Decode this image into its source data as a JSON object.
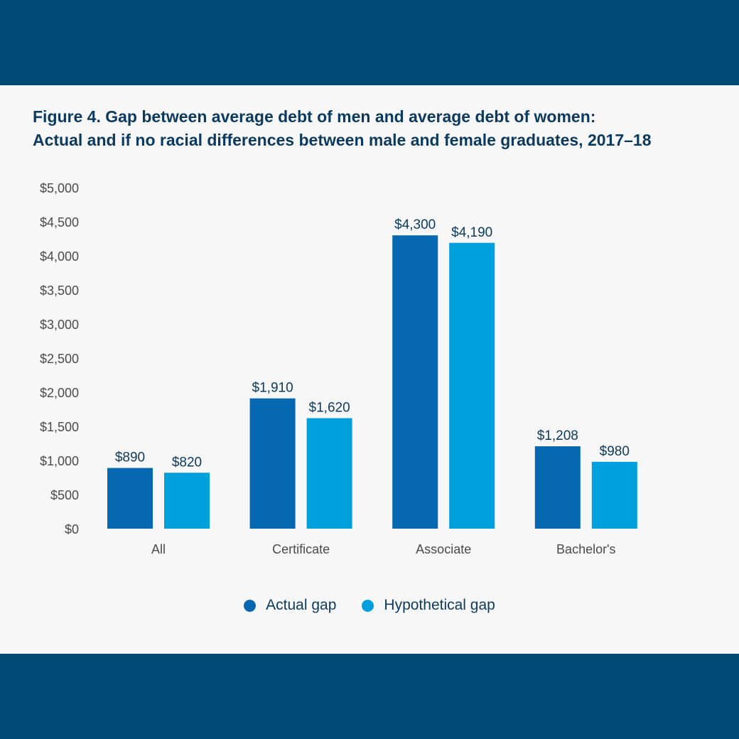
{
  "title_line1": "Figure 4. Gap between average debt of men and average debt of women:",
  "title_line2": "Actual and if no racial differences between male and female graduates, 2017–18",
  "colors": {
    "band": "#004a78",
    "panel": "#f7f7f7",
    "actual": "#0668b1",
    "hypothetical": "#00a0dc",
    "text": "#0b3a5e",
    "axis": "#4a4a4a"
  },
  "chart_data": {
    "type": "bar",
    "categories": [
      "All",
      "Certificate",
      "Associate",
      "Bachelor's"
    ],
    "series": [
      {
        "name": "Actual gap",
        "values": [
          890,
          1910,
          4300,
          1208
        ],
        "labels": [
          "$890",
          "$1,910",
          "$4,300",
          "$1,208"
        ]
      },
      {
        "name": "Hypothetical gap",
        "values": [
          820,
          1620,
          4190,
          980
        ],
        "labels": [
          "$820",
          "$1,620",
          "$4,190",
          "$980"
        ]
      }
    ],
    "ylim": [
      0,
      5000
    ],
    "yticks": [
      0,
      500,
      1000,
      1500,
      2000,
      2500,
      3000,
      3500,
      4000,
      4500,
      5000
    ],
    "ytick_labels": [
      "$0",
      "$500",
      "$1,000",
      "$1,500",
      "$2,000",
      "$2,500",
      "$3,000",
      "$3,500",
      "$4,000",
      "$4,500",
      "$5,000"
    ],
    "grid": false,
    "legend_position": "bottom-center"
  }
}
